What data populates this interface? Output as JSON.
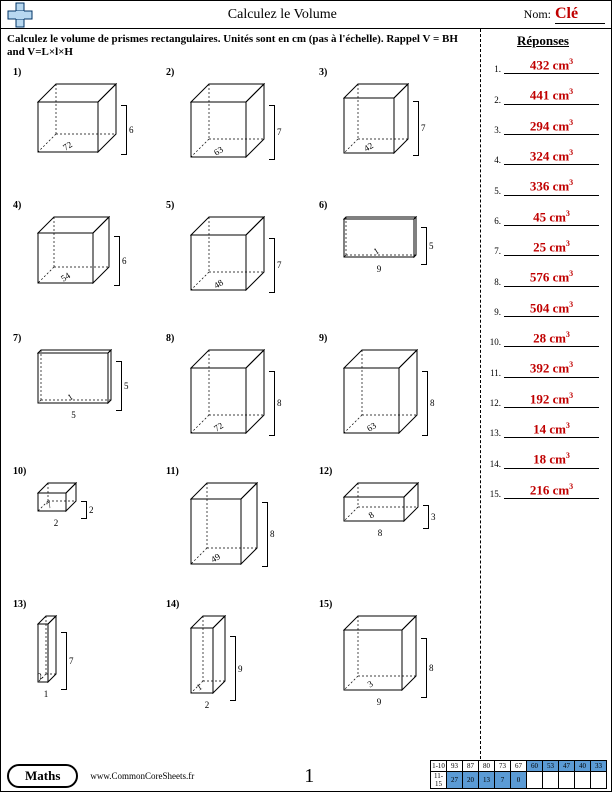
{
  "header": {
    "title": "Calculez le Volume",
    "nom_label": "Nom:",
    "nom_value": "Clé"
  },
  "instructions": "Calculez le volume de prismes rectangulaires. Unités sont en cm (pas à l'échelle). Rappel V = BH and V=L×l×H",
  "answers_title": "Réponses",
  "problems": [
    {
      "n": "1)",
      "w": 60,
      "h": 50,
      "d": 18,
      "hv": "6",
      "bot": "",
      "depth": "72"
    },
    {
      "n": "2)",
      "w": 55,
      "h": 55,
      "d": 18,
      "hv": "7",
      "bot": "",
      "depth": "63"
    },
    {
      "n": "3)",
      "w": 50,
      "h": 55,
      "d": 14,
      "hv": "7",
      "bot": "",
      "depth": "42"
    },
    {
      "n": "4)",
      "w": 55,
      "h": 50,
      "d": 16,
      "hv": "6",
      "bot": "",
      "depth": "54"
    },
    {
      "n": "5)",
      "w": 55,
      "h": 55,
      "d": 18,
      "hv": "7",
      "bot": "",
      "depth": "48"
    },
    {
      "n": "6)",
      "w": 70,
      "h": 38,
      "d": 2,
      "hv": "5",
      "bot": "9",
      "depth": "1"
    },
    {
      "n": "7)",
      "w": 70,
      "h": 50,
      "d": 3,
      "hv": "5",
      "bot": "5",
      "depth": "1"
    },
    {
      "n": "8)",
      "w": 55,
      "h": 65,
      "d": 18,
      "hv": "8",
      "bot": "",
      "depth": "72"
    },
    {
      "n": "9)",
      "w": 55,
      "h": 65,
      "d": 18,
      "hv": "8",
      "bot": "",
      "depth": "63"
    },
    {
      "n": "10)",
      "w": 28,
      "h": 18,
      "d": 10,
      "hv": "2",
      "bot": "2",
      "depth": "7"
    },
    {
      "n": "11)",
      "w": 50,
      "h": 65,
      "d": 16,
      "hv": "8",
      "bot": "",
      "depth": "49"
    },
    {
      "n": "12)",
      "w": 60,
      "h": 24,
      "d": 14,
      "hv": "3",
      "bot": "8",
      "depth": "8"
    },
    {
      "n": "13)",
      "w": 10,
      "h": 58,
      "d": 8,
      "hv": "7",
      "bot": "1",
      "depth": "2"
    },
    {
      "n": "14)",
      "w": 22,
      "h": 65,
      "d": 12,
      "hv": "9",
      "bot": "2",
      "depth": "1"
    },
    {
      "n": "15)",
      "w": 58,
      "h": 60,
      "d": 14,
      "hv": "8",
      "bot": "9",
      "depth": "3"
    }
  ],
  "answers": [
    {
      "n": "1.",
      "v": "432 cm",
      "sup": "3"
    },
    {
      "n": "2.",
      "v": "441 cm",
      "sup": "3"
    },
    {
      "n": "3.",
      "v": "294 cm",
      "sup": "3"
    },
    {
      "n": "4.",
      "v": "324 cm",
      "sup": "3"
    },
    {
      "n": "5.",
      "v": "336 cm",
      "sup": "3"
    },
    {
      "n": "6.",
      "v": "45 cm",
      "sup": "3"
    },
    {
      "n": "7.",
      "v": "25 cm",
      "sup": "3"
    },
    {
      "n": "8.",
      "v": "576 cm",
      "sup": "3"
    },
    {
      "n": "9.",
      "v": "504 cm",
      "sup": "3"
    },
    {
      "n": "10.",
      "v": "28 cm",
      "sup": "3"
    },
    {
      "n": "11.",
      "v": "392 cm",
      "sup": "3"
    },
    {
      "n": "12.",
      "v": "192 cm",
      "sup": "3"
    },
    {
      "n": "13.",
      "v": "14 cm",
      "sup": "3"
    },
    {
      "n": "14.",
      "v": "18 cm",
      "sup": "3"
    },
    {
      "n": "15.",
      "v": "216 cm",
      "sup": "3"
    }
  ],
  "footer": {
    "subject": "Maths",
    "site": "www.CommonCoreSheets.fr",
    "page": "1"
  },
  "score": {
    "row1_label": "1-10",
    "row2_label": "11-15",
    "row1": [
      "93",
      "87",
      "80",
      "73",
      "67",
      "60",
      "53",
      "47",
      "40",
      "33"
    ],
    "row2": [
      "27",
      "20",
      "13",
      "7",
      "0",
      "",
      "",
      "",
      "",
      ""
    ]
  },
  "colors": {
    "answer_red": "#c00000",
    "score_blue": "#5b9bd5"
  }
}
